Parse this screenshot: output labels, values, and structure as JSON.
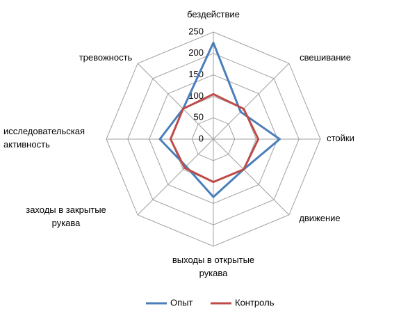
{
  "chart_data": {
    "type": "radar",
    "categories": [
      [
        "бездействие"
      ],
      [
        "свешивание"
      ],
      [
        "стойки"
      ],
      [
        "движение"
      ],
      [
        "выходы в открытые",
        "рукава"
      ],
      [
        "заходы в закрытые",
        "рукава"
      ],
      [
        "исследовательская",
        "активность"
      ],
      [
        "тревожность"
      ]
    ],
    "series": [
      {
        "name": "Опыт",
        "color": "#4a7ebb",
        "values": [
          225,
          90,
          155,
          100,
          135,
          90,
          125,
          100
        ]
      },
      {
        "name": "Контроль",
        "color": "#be4b48",
        "values": [
          105,
          100,
          105,
          100,
          100,
          95,
          100,
          100
        ]
      }
    ],
    "rlim": [
      0,
      250
    ],
    "rticks": [
      0,
      50,
      100,
      150,
      200,
      250
    ],
    "grid": true,
    "legend": "bottom"
  }
}
